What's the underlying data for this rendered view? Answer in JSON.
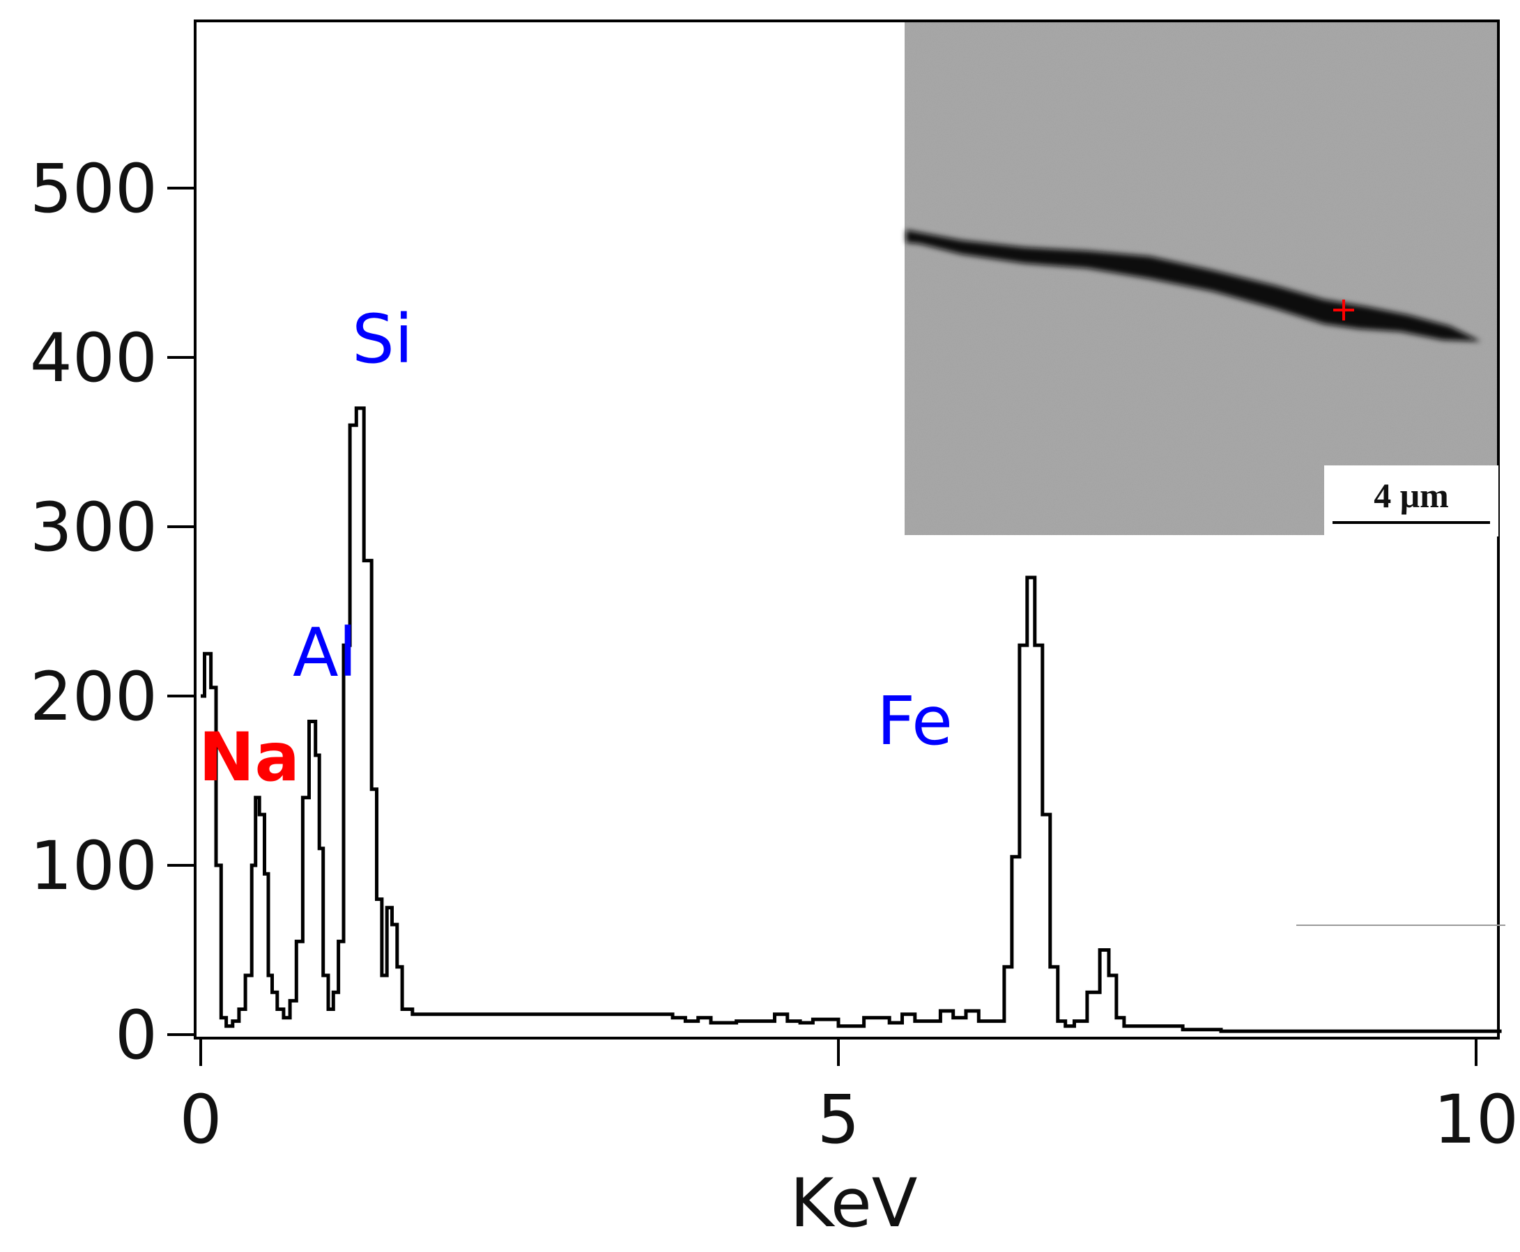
{
  "chart_data": {
    "type": "line",
    "title": "",
    "xlabel": "KeV",
    "ylabel": "",
    "xlim": [
      0,
      10.2
    ],
    "ylim": [
      0,
      600
    ],
    "x_ticks": [
      0,
      5,
      10
    ],
    "x_tick_labels": [
      "0",
      "5",
      "10"
    ],
    "y_ticks": [
      0,
      100,
      200,
      300,
      400,
      500
    ],
    "y_tick_labels": [
      "0",
      "100",
      "200",
      "300",
      "400",
      "500"
    ],
    "grid": false,
    "legend": "none",
    "series": [
      {
        "name": "EDS spectrum",
        "color": "#000000",
        "x": [
          0.0,
          0.03,
          0.08,
          0.12,
          0.16,
          0.2,
          0.25,
          0.3,
          0.35,
          0.4,
          0.43,
          0.46,
          0.5,
          0.53,
          0.56,
          0.6,
          0.65,
          0.7,
          0.75,
          0.8,
          0.85,
          0.9,
          0.93,
          0.96,
          1.0,
          1.04,
          1.08,
          1.12,
          1.17,
          1.22,
          1.28,
          1.34,
          1.38,
          1.42,
          1.46,
          1.5,
          1.54,
          1.58,
          1.62,
          1.66,
          1.7,
          1.74,
          1.78,
          1.83,
          1.88,
          1.94,
          2.0,
          2.1,
          2.3,
          2.6,
          3.0,
          3.5,
          3.7,
          3.8,
          3.9,
          4.0,
          4.2,
          4.5,
          4.6,
          4.7,
          4.8,
          5.0,
          5.2,
          5.4,
          5.5,
          5.6,
          5.8,
          5.9,
          6.0,
          6.1,
          6.2,
          6.3,
          6.36,
          6.42,
          6.48,
          6.54,
          6.6,
          6.66,
          6.72,
          6.78,
          6.85,
          6.95,
          7.05,
          7.12,
          7.18,
          7.24,
          7.3,
          7.36,
          7.45,
          7.55,
          7.7,
          8.0,
          8.5,
          9.0,
          9.5,
          10.0,
          10.2
        ],
        "y": [
          200,
          225,
          205,
          100,
          10,
          5,
          8,
          15,
          35,
          100,
          140,
          130,
          95,
          35,
          25,
          15,
          10,
          20,
          55,
          140,
          185,
          165,
          110,
          35,
          15,
          25,
          55,
          230,
          360,
          370,
          280,
          145,
          80,
          35,
          75,
          65,
          40,
          15,
          15,
          12,
          12,
          12,
          12,
          12,
          12,
          12,
          12,
          12,
          12,
          12,
          12,
          12,
          10,
          8,
          10,
          7,
          8,
          12,
          8,
          7,
          9,
          5,
          10,
          7,
          12,
          8,
          14,
          10,
          14,
          8,
          8,
          40,
          105,
          230,
          270,
          230,
          130,
          40,
          8,
          5,
          8,
          25,
          50,
          35,
          10,
          5,
          5,
          5,
          5,
          5,
          3,
          2,
          2,
          2,
          2,
          2,
          2
        ]
      }
    ],
    "annotations": [
      {
        "text": "Na",
        "color": "#ff0000",
        "bold": true
      },
      {
        "text": "Al",
        "color": "#0000ff",
        "bold": false
      },
      {
        "text": "Si",
        "color": "#0000ff",
        "bold": false
      },
      {
        "text": "Fe",
        "color": "#0000ff",
        "bold": false
      }
    ],
    "inset": {
      "description": "SEM micrograph inset",
      "scale_bar_label": "4 μm",
      "marker_color": "#ff0000"
    }
  }
}
